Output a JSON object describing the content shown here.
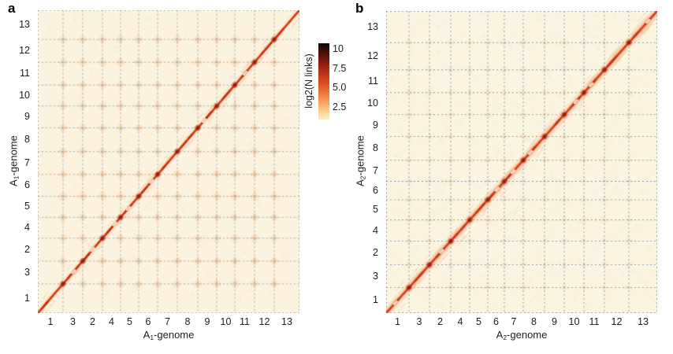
{
  "figure": {
    "background": "#ffffff"
  },
  "chart_data": {
    "type": "heatmap",
    "description": "Hi-C chromatin contact maps of two cotton A-genomes; 13x13 chromosome matrix each, dominated by a strong intra-chromosomal diagonal from bottom-left to top-right, with faint inter-chromosomal contact dots at dashed chromosome-boundary gridline intersections.",
    "colorbar": {
      "title": "log2(N links)",
      "tick_labels": [
        "10",
        "7.5",
        "5.0",
        "2.5"
      ],
      "tick_values": [
        10,
        7.5,
        5.0,
        2.5
      ],
      "scale_min": 0.9,
      "scale_max": 10.75,
      "gradient": [
        {
          "color": "#0d0402",
          "pos": "0%"
        },
        {
          "color": "#2e0a05",
          "pos": "6%"
        },
        {
          "color": "#5c120a",
          "pos": "16%"
        },
        {
          "color": "#8f1d0e",
          "pos": "27%"
        },
        {
          "color": "#b92f15",
          "pos": "38%"
        },
        {
          "color": "#d4491f",
          "pos": "50%"
        },
        {
          "color": "#e56a31",
          "pos": "61%"
        },
        {
          "color": "#f08c49",
          "pos": "71%"
        },
        {
          "color": "#f8b169",
          "pos": "81%"
        },
        {
          "color": "#fcd494",
          "pos": "90%"
        },
        {
          "color": "#fdeec6",
          "pos": "100%"
        }
      ]
    },
    "panels": [
      {
        "id": "a",
        "label": "a",
        "x_axis_title": {
          "prefix": "A",
          "sub": "1",
          "suffix": "-genome"
        },
        "y_axis_title": {
          "prefix": "A",
          "sub": "1",
          "suffix": "-genome"
        },
        "tick_labels": [
          "1",
          "3",
          "2",
          "4",
          "5",
          "6",
          "7",
          "8",
          "9",
          "10",
          "11",
          "12",
          "13"
        ],
        "chrom_sizes": [
          32,
          25,
          25,
          23,
          23,
          24,
          25,
          26,
          24,
          23,
          25,
          25,
          32
        ],
        "pattern": "strong diagonal; clearly visible faint orange dots at every gridline intersection (inter-chromosomal contacts)",
        "style": {
          "plot_bg": "#fbf3e0",
          "diag_core": "#d6471f",
          "diag_core_dark": "#c03515",
          "diag_halo": "rgba(224,96,48,0.28)",
          "diag_glow": "rgba(228,130,70,0.10)",
          "halo_width": 8,
          "boundary_blob": "150,30,12",
          "grid_color": "rgba(150,170,194,0.85)",
          "smudge_rgb": "214,130,58",
          "smudge_alpha": 0.12,
          "noise_seed": 7,
          "wedge_blocks": []
        }
      },
      {
        "id": "b",
        "label": "b",
        "x_axis_title": {
          "prefix": "A",
          "sub": "2",
          "suffix": "-genome"
        },
        "y_axis_title": {
          "prefix": "A",
          "sub": "2",
          "suffix": "-genome"
        },
        "tick_labels": [
          "1",
          "3",
          "2",
          "4",
          "5",
          "6",
          "7",
          "8",
          "9",
          "10",
          "11",
          "12",
          "13"
        ],
        "chrom_sizes": [
          29,
          26,
          27,
          24,
          23,
          21,
          24,
          27,
          25,
          25,
          26,
          31,
          36
        ],
        "pattern": "strong fuzzy diagonal with triangular domains; inter-chromosomal background nearly clean",
        "style": {
          "plot_bg": "#fbf4e1",
          "diag_core": "#d6471f",
          "diag_core_dark": "#c03515",
          "diag_halo": "rgba(224,96,48,0.30)",
          "diag_glow": "rgba(228,130,70,0.13)",
          "halo_width": 12,
          "boundary_blob": "150,30,12",
          "grid_color": "rgba(128,152,182,0.95)",
          "smudge_rgb": "214,130,58",
          "smudge_alpha": 0.05,
          "noise_seed": 13,
          "wedge_blocks": [
            2,
            3,
            4,
            5,
            6,
            7,
            10,
            11,
            12
          ]
        }
      }
    ]
  }
}
